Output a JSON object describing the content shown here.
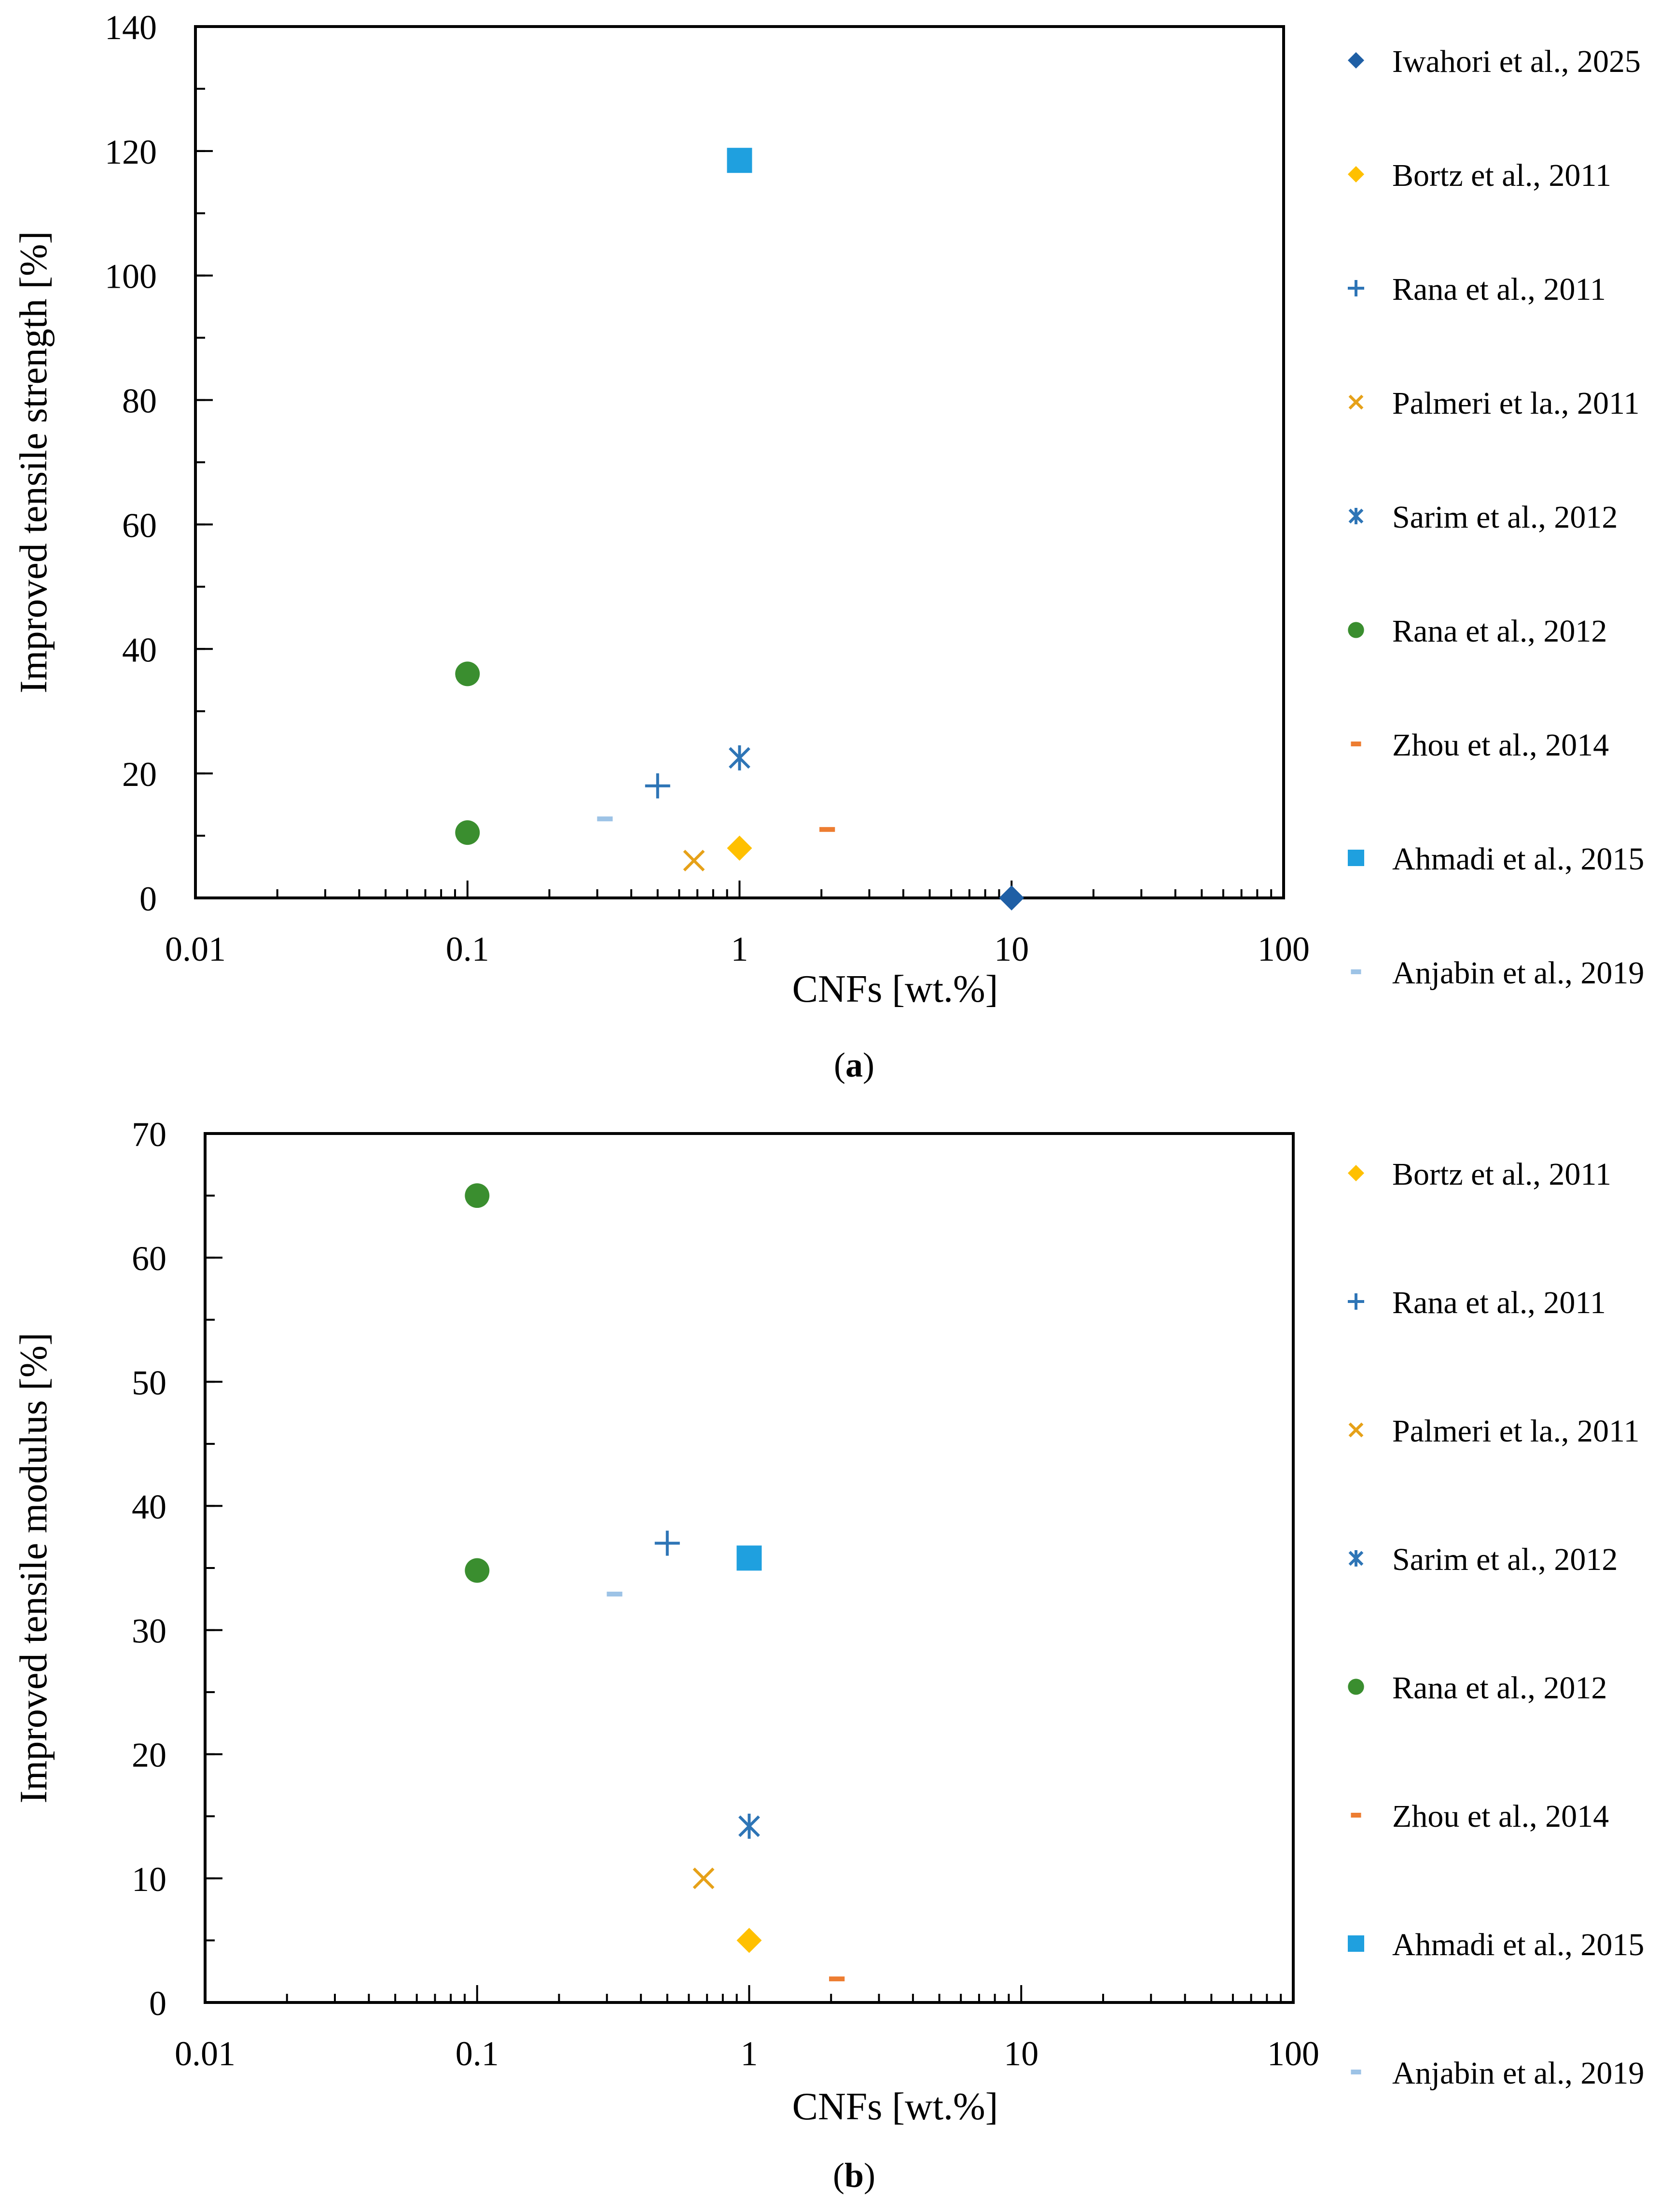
{
  "chart_data": [
    {
      "id": "a",
      "type": "scatter",
      "x_scale": "log",
      "xlabel": "CNFs [wt.%]",
      "ylabel": "Improved tensile strength [%]",
      "xlim": [
        0.01,
        100
      ],
      "ylim": [
        0,
        140
      ],
      "x_ticks": [
        {
          "value": 0.01,
          "label": "0.01"
        },
        {
          "value": 0.1,
          "label": "0.1"
        },
        {
          "value": 1,
          "label": "1"
        },
        {
          "value": 10,
          "label": "10"
        },
        {
          "value": 100,
          "label": "100"
        }
      ],
      "y_ticks": [
        {
          "value": 0,
          "label": "0"
        },
        {
          "value": 20,
          "label": "20"
        },
        {
          "value": 40,
          "label": "40"
        },
        {
          "value": 60,
          "label": "60"
        },
        {
          "value": 80,
          "label": "80"
        },
        {
          "value": 100,
          "label": "100"
        },
        {
          "value": 120,
          "label": "120"
        },
        {
          "value": 140,
          "label": "140"
        }
      ],
      "y_minor_step": 10,
      "legend_position": "right",
      "series": [
        {
          "name": "Iwahori et al., 2025",
          "marker": "diamond",
          "color": "#1f5fa5",
          "points": [
            {
              "x": 10,
              "y": 0
            }
          ]
        },
        {
          "name": "Bortz et al., 2011",
          "marker": "diamond",
          "color": "#ffc000",
          "points": [
            {
              "x": 1,
              "y": 8
            }
          ]
        },
        {
          "name": "Rana et al., 2011",
          "marker": "plus",
          "color": "#2e75b6",
          "points": [
            {
              "x": 0.5,
              "y": 18
            }
          ]
        },
        {
          "name": "Palmeri et la., 2011",
          "marker": "cross",
          "color": "#e6a118",
          "points": [
            {
              "x": 0.68,
              "y": 6
            }
          ]
        },
        {
          "name": "Sarim et al., 2012",
          "marker": "star",
          "color": "#2e75b6",
          "points": [
            {
              "x": 1,
              "y": 22.5
            }
          ]
        },
        {
          "name": "Rana et al., 2012",
          "marker": "circle",
          "color": "#3a8e2f",
          "points": [
            {
              "x": 0.1,
              "y": 36
            },
            {
              "x": 0.1,
              "y": 10.5
            }
          ]
        },
        {
          "name": "Zhou et al., 2014",
          "marker": "dash",
          "color": "#ed7d31",
          "points": [
            {
              "x": 2.1,
              "y": 11
            }
          ]
        },
        {
          "name": "Ahmadi et al., 2015",
          "marker": "square",
          "color": "#1fa0df",
          "points": [
            {
              "x": 1,
              "y": 118.5
            }
          ]
        },
        {
          "name": "Anjabin et al., 2019",
          "marker": "dash",
          "color": "#9dc3e6",
          "points": [
            {
              "x": 0.32,
              "y": 12.7
            }
          ]
        }
      ],
      "caption": {
        "open": "(",
        "letter": "a",
        "close": ")"
      }
    },
    {
      "id": "b",
      "type": "scatter",
      "x_scale": "log",
      "xlabel": "CNFs [wt.%]",
      "ylabel": "Improved tensile modulus [%]",
      "xlim": [
        0.01,
        100
      ],
      "ylim": [
        0,
        70
      ],
      "x_ticks": [
        {
          "value": 0.01,
          "label": "0.01"
        },
        {
          "value": 0.1,
          "label": "0.1"
        },
        {
          "value": 1,
          "label": "1"
        },
        {
          "value": 10,
          "label": "10"
        },
        {
          "value": 100,
          "label": "100"
        }
      ],
      "y_ticks": [
        {
          "value": 0,
          "label": "0"
        },
        {
          "value": 10,
          "label": "10"
        },
        {
          "value": 20,
          "label": "20"
        },
        {
          "value": 30,
          "label": "30"
        },
        {
          "value": 40,
          "label": "40"
        },
        {
          "value": 50,
          "label": "50"
        },
        {
          "value": 60,
          "label": "60"
        },
        {
          "value": 70,
          "label": "70"
        }
      ],
      "y_minor_step": 5,
      "legend_position": "right",
      "series": [
        {
          "name": "Bortz et al., 2011",
          "marker": "diamond",
          "color": "#ffc000",
          "points": [
            {
              "x": 1,
              "y": 5
            }
          ]
        },
        {
          "name": "Rana et al., 2011",
          "marker": "plus",
          "color": "#2e75b6",
          "points": [
            {
              "x": 0.5,
              "y": 37
            }
          ]
        },
        {
          "name": "Palmeri et la., 2011",
          "marker": "cross",
          "color": "#e6a118",
          "points": [
            {
              "x": 0.68,
              "y": 10
            }
          ]
        },
        {
          "name": "Sarim et al., 2012",
          "marker": "star",
          "color": "#2e75b6",
          "points": [
            {
              "x": 1,
              "y": 14.2
            }
          ]
        },
        {
          "name": "Rana et al., 2012",
          "marker": "circle",
          "color": "#3a8e2f",
          "points": [
            {
              "x": 0.1,
              "y": 65
            },
            {
              "x": 0.1,
              "y": 34.8
            }
          ]
        },
        {
          "name": "Zhou et al., 2014",
          "marker": "dash",
          "color": "#ed7d31",
          "points": [
            {
              "x": 2.1,
              "y": 1.9
            }
          ]
        },
        {
          "name": "Ahmadi et al., 2015",
          "marker": "square",
          "color": "#1fa0df",
          "points": [
            {
              "x": 1,
              "y": 35.8
            }
          ]
        },
        {
          "name": "Anjabin et al., 2019",
          "marker": "dash",
          "color": "#9dc3e6",
          "points": [
            {
              "x": 0.32,
              "y": 32.9
            }
          ]
        }
      ],
      "caption": {
        "open": "(",
        "letter": "b",
        "close": ")"
      }
    }
  ]
}
